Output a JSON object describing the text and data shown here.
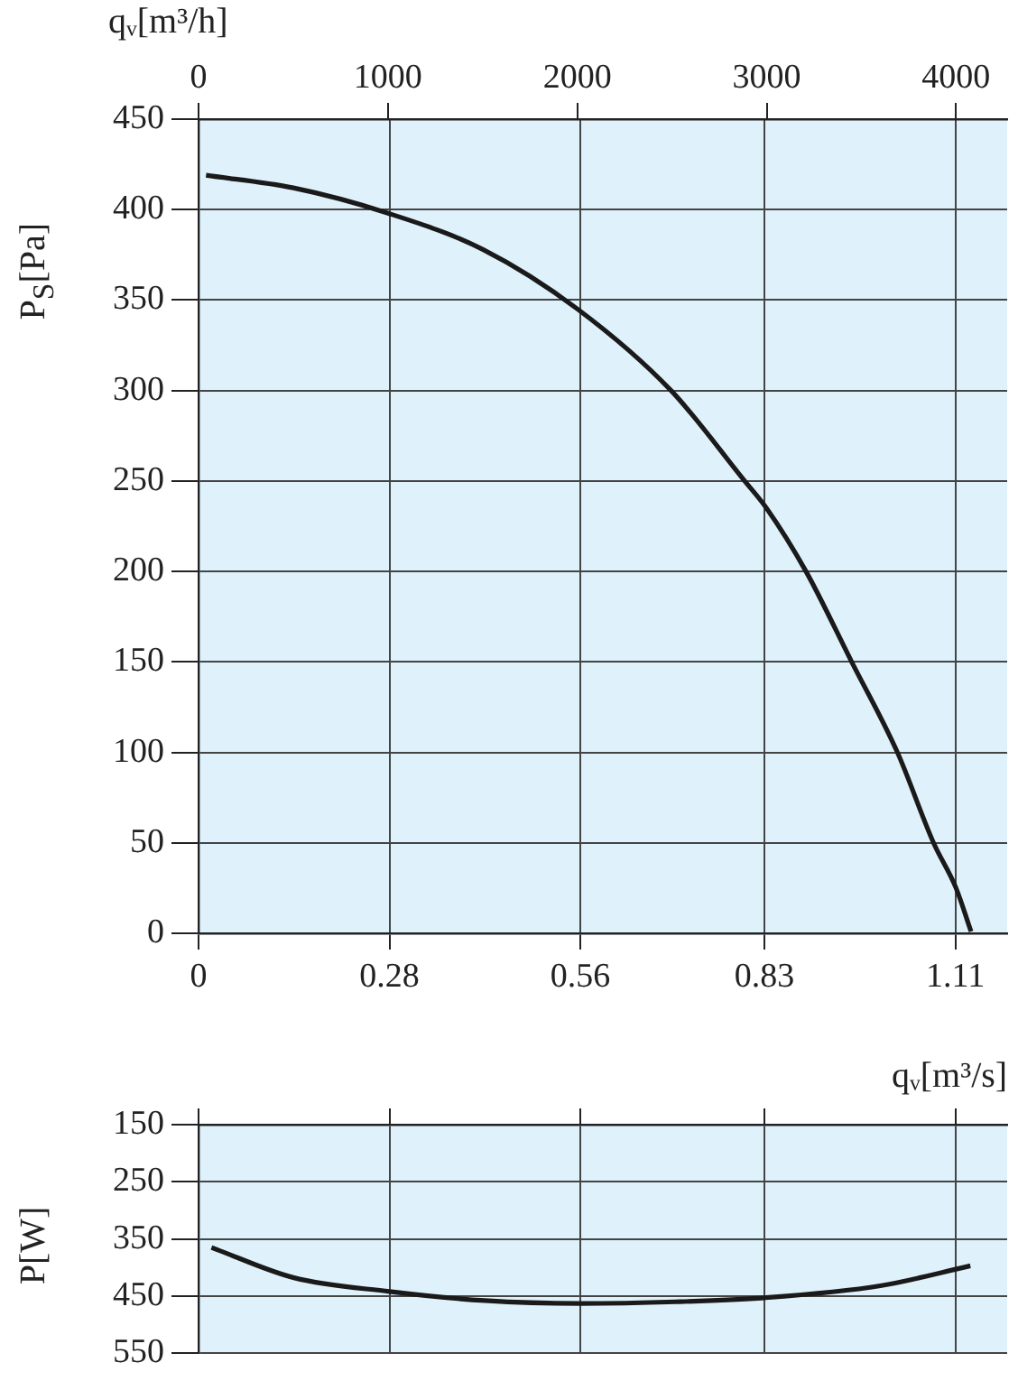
{
  "chart_data": [
    {
      "type": "line",
      "xlabel": "qᵥ[m³/s]",
      "x2label": "qᵥ[m³/h]",
      "ylabel": "P$_{S}$[Pa]",
      "series": [
        {
          "color": "#1a1a1a",
          "x": [
            0.011,
            0.139,
            0.278,
            0.417,
            0.556,
            0.693,
            0.801,
            0.833,
            0.891,
            0.958,
            1.025,
            1.078,
            1.111,
            1.133
          ],
          "values": [
            419,
            412,
            398,
            378,
            345,
            300,
            250,
            235,
            200,
            150,
            100,
            50,
            25,
            1
          ]
        }
      ],
      "xlim": [
        0,
        1.186
      ],
      "xticks": [
        0,
        0.28,
        0.56,
        0.83,
        1.11
      ],
      "x2lim": [
        0,
        4270
      ],
      "x2ticks": [
        0,
        1000,
        2000,
        3000,
        4000
      ],
      "ylim": [
        0,
        450
      ],
      "yticks": [
        0,
        50,
        100,
        150,
        200,
        250,
        300,
        350,
        400,
        450
      ],
      "grid": true,
      "legend": false,
      "marker": "none",
      "line_style": "solid"
    },
    {
      "type": "line",
      "ylabel": "P[W]",
      "series": [
        {
          "color": "#1a1a1a",
          "x": [
            0.019,
            0.14,
            0.28,
            0.42,
            0.56,
            0.7,
            0.83,
            1.0,
            1.132
          ],
          "values": [
            365,
            418,
            442,
            458,
            463,
            460,
            453,
            432,
            397
          ]
        }
      ],
      "xlim": [
        0,
        1.186
      ],
      "xticks": [
        0,
        0.28,
        0.56,
        0.83,
        1.11
      ],
      "ylim": [
        550,
        150
      ],
      "yticks": [
        150,
        250,
        350,
        450,
        550
      ],
      "tick_labels": "y",
      "grid": true,
      "legend": false,
      "marker": "none",
      "line_style": "solid"
    }
  ]
}
